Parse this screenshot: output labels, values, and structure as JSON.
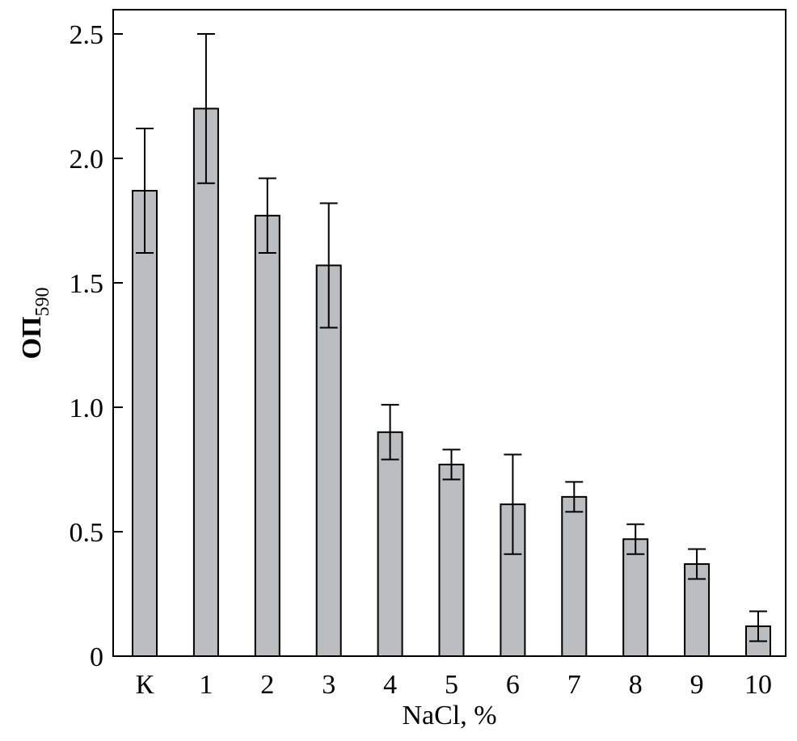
{
  "chart_data": {
    "type": "bar",
    "xlabel": "NaCl, %",
    "ylabel": {
      "main": "ОП",
      "subscript": "590"
    },
    "categories": [
      "К",
      "1",
      "2",
      "3",
      "4",
      "5",
      "6",
      "7",
      "8",
      "9",
      "10"
    ],
    "values": [
      1.87,
      2.2,
      1.77,
      1.57,
      0.9,
      0.77,
      0.61,
      0.64,
      0.47,
      0.37,
      0.12
    ],
    "errors": [
      0.25,
      0.3,
      0.15,
      0.25,
      0.11,
      0.06,
      0.2,
      0.06,
      0.06,
      0.06,
      0.06
    ],
    "ylim": [
      0,
      2.6
    ],
    "yticks": [
      0,
      0.5,
      1.0,
      1.5,
      2.0,
      2.5
    ],
    "ytick_labels": [
      "0",
      "0.5",
      "1.0",
      "1.5",
      "2.0",
      "2.5"
    ],
    "grid": false,
    "bar_color": "#bcbdc1"
  }
}
